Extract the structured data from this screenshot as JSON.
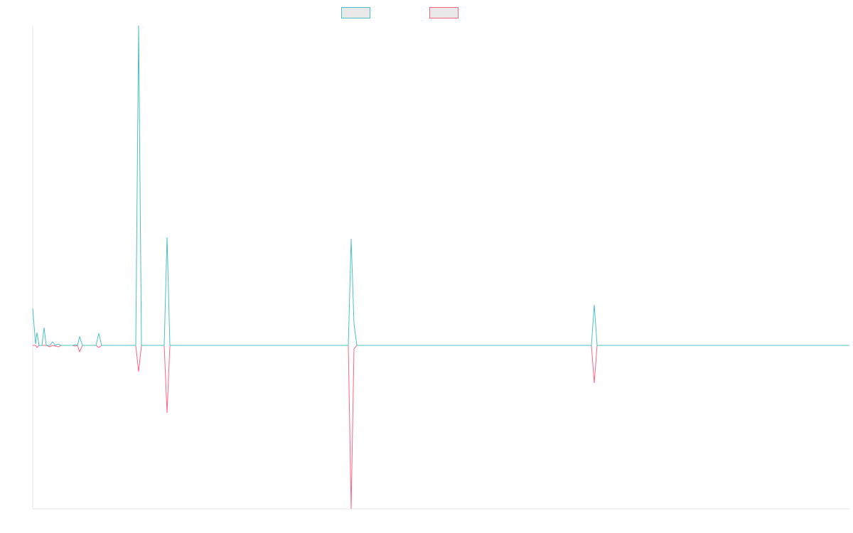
{
  "chart_data": {
    "type": "line",
    "x": [
      0,
      4,
      6,
      9,
      13,
      16,
      19,
      24,
      28,
      32,
      36,
      40,
      56,
      60,
      63,
      66,
      70,
      89,
      93,
      97,
      145,
      149,
      153,
      185,
      189,
      193,
      444,
      448,
      452,
      456,
      786,
      790,
      794,
      1149
    ],
    "xlim": [
      0,
      1149
    ],
    "ylim": [
      -230,
      450
    ],
    "series": [
      {
        "color": "#4bc0c0",
        "values": [
          52,
          2,
          18,
          0,
          0,
          25,
          0,
          0,
          5,
          0,
          2,
          0,
          0,
          1,
          0,
          12,
          0,
          0,
          17,
          0,
          0,
          450,
          0,
          0,
          152,
          0,
          0,
          150,
          30,
          0,
          0,
          57,
          0,
          0
        ]
      },
      {
        "color": "#ff6384",
        "values": [
          0,
          0,
          -3,
          0,
          0,
          0,
          0,
          -2,
          0,
          -1,
          -2,
          0,
          0,
          -1,
          0,
          -9,
          0,
          0,
          -3,
          0,
          0,
          -37,
          0,
          0,
          -95,
          0,
          0,
          -230,
          -5,
          0,
          0,
          -53,
          0,
          0
        ]
      }
    ]
  }
}
